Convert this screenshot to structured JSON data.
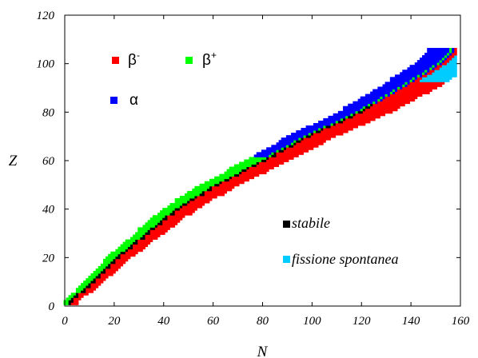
{
  "chart_data": {
    "type": "scatter",
    "title": "",
    "xlabel": "N",
    "ylabel": "Z",
    "xlim": [
      0,
      160
    ],
    "ylim": [
      0,
      120
    ],
    "xticks": [
      "0",
      "20",
      "40",
      "60",
      "80",
      "100",
      "120",
      "140",
      "160"
    ],
    "yticks": [
      "0",
      "20",
      "40",
      "60",
      "80",
      "100",
      "120"
    ],
    "grid": false,
    "legend_placement": "inside",
    "legend": [
      {
        "key": "beta_minus",
        "label": "β",
        "sup": "-",
        "color": "#ff0000"
      },
      {
        "key": "beta_plus",
        "label": "β",
        "sup": "+",
        "color": "#00ff00"
      },
      {
        "key": "alpha",
        "label": "α",
        "sup": "",
        "color": "#0000ff"
      },
      {
        "key": "stable",
        "label": "stabile",
        "sup": "",
        "color": "#000000"
      },
      {
        "key": "fission",
        "label": "fissione spontanea",
        "sup": "",
        "color": "#00ccff"
      }
    ],
    "band_profile": {
      "z": [
        2,
        10,
        20,
        30,
        40,
        50,
        60,
        70,
        80,
        90,
        100,
        105
      ],
      "n_stable": [
        2,
        11,
        21,
        33,
        45,
        61,
        80,
        98,
        119,
        136,
        152,
        157
      ]
    }
  }
}
